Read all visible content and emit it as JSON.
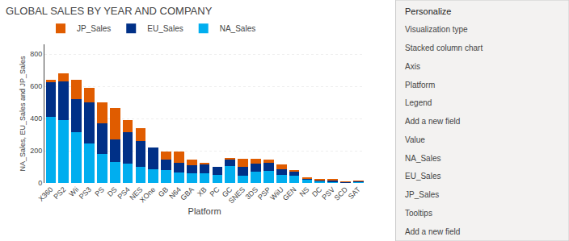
{
  "chart_data": {
    "type": "bar",
    "stacked": true,
    "title": "GLOBAL SALES BY YEAR AND COMPANY",
    "xlabel": "Platform",
    "ylabel": "NA_Sales, EU_Sales and JP_Sales",
    "categories": [
      "X360",
      "PS2",
      "Wii",
      "PS3",
      "PS",
      "DS",
      "PS4",
      "NES",
      "XOne",
      "GB",
      "N64",
      "GBA",
      "XB",
      "PC",
      "GC",
      "SNES",
      "3DS",
      "PSP",
      "WiiU",
      "GEN",
      "NS",
      "DC",
      "PSV",
      "SCD",
      "SAT"
    ],
    "series": [
      {
        "name": "NA_Sales",
        "color": "#00AEEF",
        "values": [
          411,
          392,
          315,
          245,
          178,
          130,
          118,
          100,
          86,
          78,
          65,
          60,
          58,
          52,
          105,
          46,
          70,
          75,
          48,
          44,
          18,
          10,
          8,
          4,
          6
        ]
      },
      {
        "name": "EU_Sales",
        "color": "#003087",
        "values": [
          215,
          238,
          205,
          257,
          190,
          138,
          195,
          160,
          135,
          65,
          58,
          50,
          55,
          48,
          40,
          52,
          52,
          50,
          35,
          28,
          10,
          8,
          8,
          3,
          5
        ]
      },
      {
        "name": "JP_Sales",
        "color": "#E05C00",
        "values": [
          14,
          48,
          118,
          88,
          130,
          198,
          78,
          78,
          0,
          50,
          72,
          35,
          10,
          0,
          8,
          52,
          28,
          22,
          32,
          8,
          6,
          6,
          6,
          1,
          4
        ]
      }
    ],
    "ylim": [
      0,
      860
    ],
    "yticks": [
      0,
      200,
      400,
      600,
      800
    ],
    "grid": true,
    "legend": "top-left",
    "annotations": [
      "Personalize",
      "Visualization type",
      "Stacked column chart",
      "Axis",
      "Platform",
      "Legend",
      "Add a new field",
      "Value",
      "NA_Sales",
      "EU_Sales",
      "JP_Sales",
      "Tooltips",
      "Add a new field"
    ]
  }
}
